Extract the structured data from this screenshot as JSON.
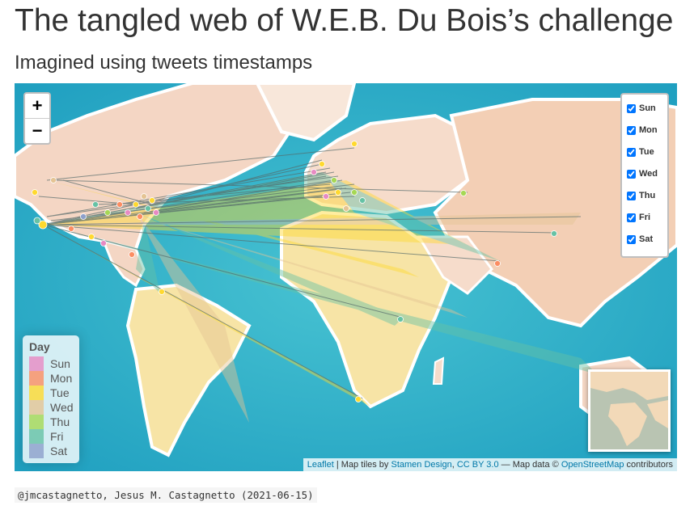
{
  "title": "The tangled web of W.E.B. Du Bois’s challenge",
  "subtitle": "Imagined using tweets timestamps",
  "map": {
    "zoom_in": "+",
    "zoom_out": "−",
    "layers": [
      "Sun",
      "Mon",
      "Tue",
      "Wed",
      "Thu",
      "Fri",
      "Sat"
    ],
    "legend_title": "Day",
    "legend": [
      {
        "label": "Sun",
        "color": "#e78ac3"
      },
      {
        "label": "Mon",
        "color": "#fc8d62"
      },
      {
        "label": "Tue",
        "color": "#ffd92f"
      },
      {
        "label": "Wed",
        "color": "#e5c494"
      },
      {
        "label": "Thu",
        "color": "#a6d854"
      },
      {
        "label": "Fri",
        "color": "#66c2a5"
      },
      {
        "label": "Sat",
        "color": "#8da0cb"
      }
    ],
    "attribution": {
      "leaflet": "Leaflet",
      "sep1": " | Map tiles by ",
      "stamen": "Stamen Design",
      "comma": ", ",
      "license": "CC BY 3.0",
      "sep2": " — Map data © ",
      "osm": "OpenStreetMap",
      "tail": " contributors"
    }
  },
  "caption": "@jmcastagnetto, Jesus M. Castagnetto (2021-06-15)"
}
